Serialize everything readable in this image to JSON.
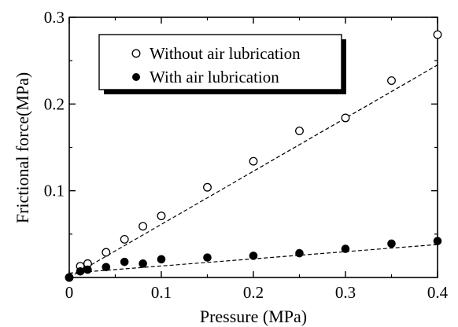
{
  "chart_data": {
    "type": "scatter",
    "xlabel": "Pressure (MPa)",
    "ylabel": "Frictional force(MPa)",
    "xlim": [
      0,
      0.4
    ],
    "ylim": [
      0,
      0.3
    ],
    "xticks": [
      0,
      0.1,
      0.2,
      0.3,
      0.4
    ],
    "xtick_labels": [
      "0",
      "0.1",
      "0.2",
      "0.3",
      "0.4"
    ],
    "yticks": [
      0.1,
      0.2,
      0.3
    ],
    "ytick_labels": [
      "0.1",
      "0.2",
      "0.3"
    ],
    "grid": false,
    "legend_position": "top-center",
    "series": [
      {
        "name": "Without air lubrication",
        "marker": "open-circle",
        "color": "#000000",
        "x": [
          0,
          0.012,
          0.02,
          0.04,
          0.06,
          0.08,
          0.1,
          0.15,
          0.2,
          0.25,
          0.3,
          0.35,
          0.4
        ],
        "y": [
          0,
          0.013,
          0.016,
          0.029,
          0.044,
          0.059,
          0.071,
          0.104,
          0.134,
          0.169,
          0.184,
          0.227,
          0.28
        ],
        "fit_line": {
          "x": [
            0,
            0.4
          ],
          "y": [
            0,
            0.245
          ]
        }
      },
      {
        "name": "With air lubrication",
        "marker": "filled-circle",
        "color": "#000000",
        "x": [
          0,
          0.012,
          0.02,
          0.04,
          0.06,
          0.08,
          0.1,
          0.15,
          0.2,
          0.25,
          0.3,
          0.35,
          0.4
        ],
        "y": [
          0,
          0.007,
          0.009,
          0.012,
          0.018,
          0.016,
          0.021,
          0.023,
          0.025,
          0.028,
          0.033,
          0.039,
          0.042
        ],
        "fit_line": {
          "x": [
            0,
            0.4
          ],
          "y": [
            0.005,
            0.038
          ]
        }
      }
    ]
  }
}
